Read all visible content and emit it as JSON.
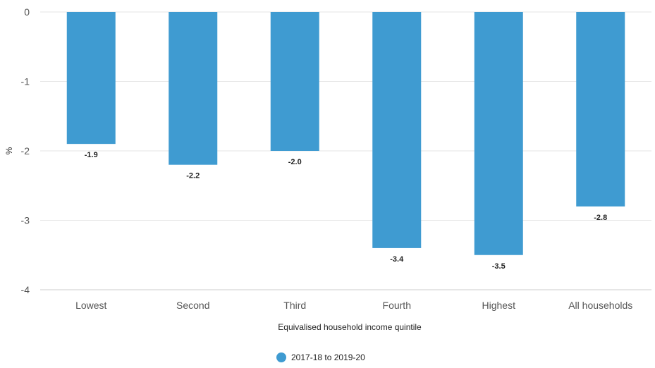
{
  "chart_data": {
    "type": "bar",
    "categories": [
      "Lowest",
      "Second",
      "Third",
      "Fourth",
      "Highest",
      "All households"
    ],
    "series": [
      {
        "name": "2017-18 to 2019-20",
        "values": [
          -1.9,
          -2.2,
          -2.0,
          -3.4,
          -3.5,
          -2.8
        ],
        "data_labels": [
          "-1.9",
          "-2.2",
          "-2.0",
          "-3.4",
          "-3.5",
          "-2.8"
        ],
        "color": "#3f9bd1"
      }
    ],
    "xlabel": "Equivalised household income quintile",
    "ylabel": "%",
    "ylim": [
      -4,
      0
    ],
    "yticks": [
      0,
      -1,
      -2,
      -3,
      -4
    ],
    "ytick_labels": [
      "0",
      "-1",
      "-2",
      "-3",
      "-4"
    ],
    "grid": true,
    "legend_position": "bottom-center",
    "colors": {
      "bar": "#3f9bd1",
      "grid": "#e6e6e6",
      "axis": "#cccccc"
    }
  }
}
